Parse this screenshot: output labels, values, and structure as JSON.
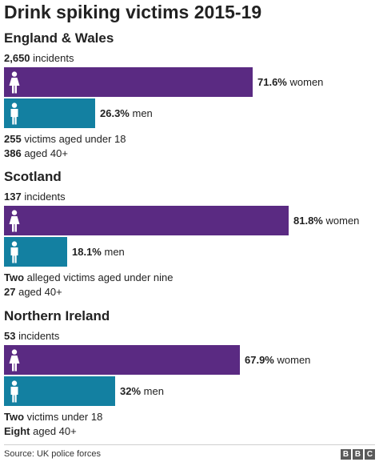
{
  "title": "Drink spiking victims 2015-19",
  "colors": {
    "women": "#5a2a82",
    "men": "#1380a1"
  },
  "icons": {
    "women": "woman-icon",
    "men": "man-icon"
  },
  "chart_data": {
    "type": "bar",
    "title": "Drink spiking victims 2015-19",
    "xlim": [
      0,
      100
    ],
    "unit": "%",
    "regions": [
      {
        "name": "England & Wales",
        "incidents_count": "2,650",
        "incidents_word": "incidents",
        "bars": [
          {
            "group": "women",
            "value": 71.6,
            "value_label": "71.6%",
            "label": "women"
          },
          {
            "group": "men",
            "value": 26.3,
            "value_label": "26.3%",
            "label": "men"
          }
        ],
        "notes": [
          {
            "bold": "255",
            "text": "victims aged under 18"
          },
          {
            "bold": "386",
            "text": "aged 40+"
          }
        ]
      },
      {
        "name": "Scotland",
        "incidents_count": "137",
        "incidents_word": "incidents",
        "bars": [
          {
            "group": "women",
            "value": 81.8,
            "value_label": "81.8%",
            "label": "women"
          },
          {
            "group": "men",
            "value": 18.1,
            "value_label": "18.1%",
            "label": "men"
          }
        ],
        "notes": [
          {
            "bold": "Two",
            "text": "alleged victims aged under nine"
          },
          {
            "bold": "27",
            "text": "aged 40+"
          }
        ]
      },
      {
        "name": "Northern Ireland",
        "incidents_count": "53",
        "incidents_word": "incidents",
        "bars": [
          {
            "group": "women",
            "value": 67.9,
            "value_label": "67.9%",
            "label": "women"
          },
          {
            "group": "men",
            "value": 32,
            "value_label": "32%",
            "label": "men"
          }
        ],
        "notes": [
          {
            "bold": "Two",
            "text": "victims under 18"
          },
          {
            "bold": "Eight",
            "text": "aged 40+"
          }
        ]
      }
    ]
  },
  "footer": {
    "source": "Source: UK police forces",
    "logo": [
      "B",
      "B",
      "C"
    ]
  }
}
